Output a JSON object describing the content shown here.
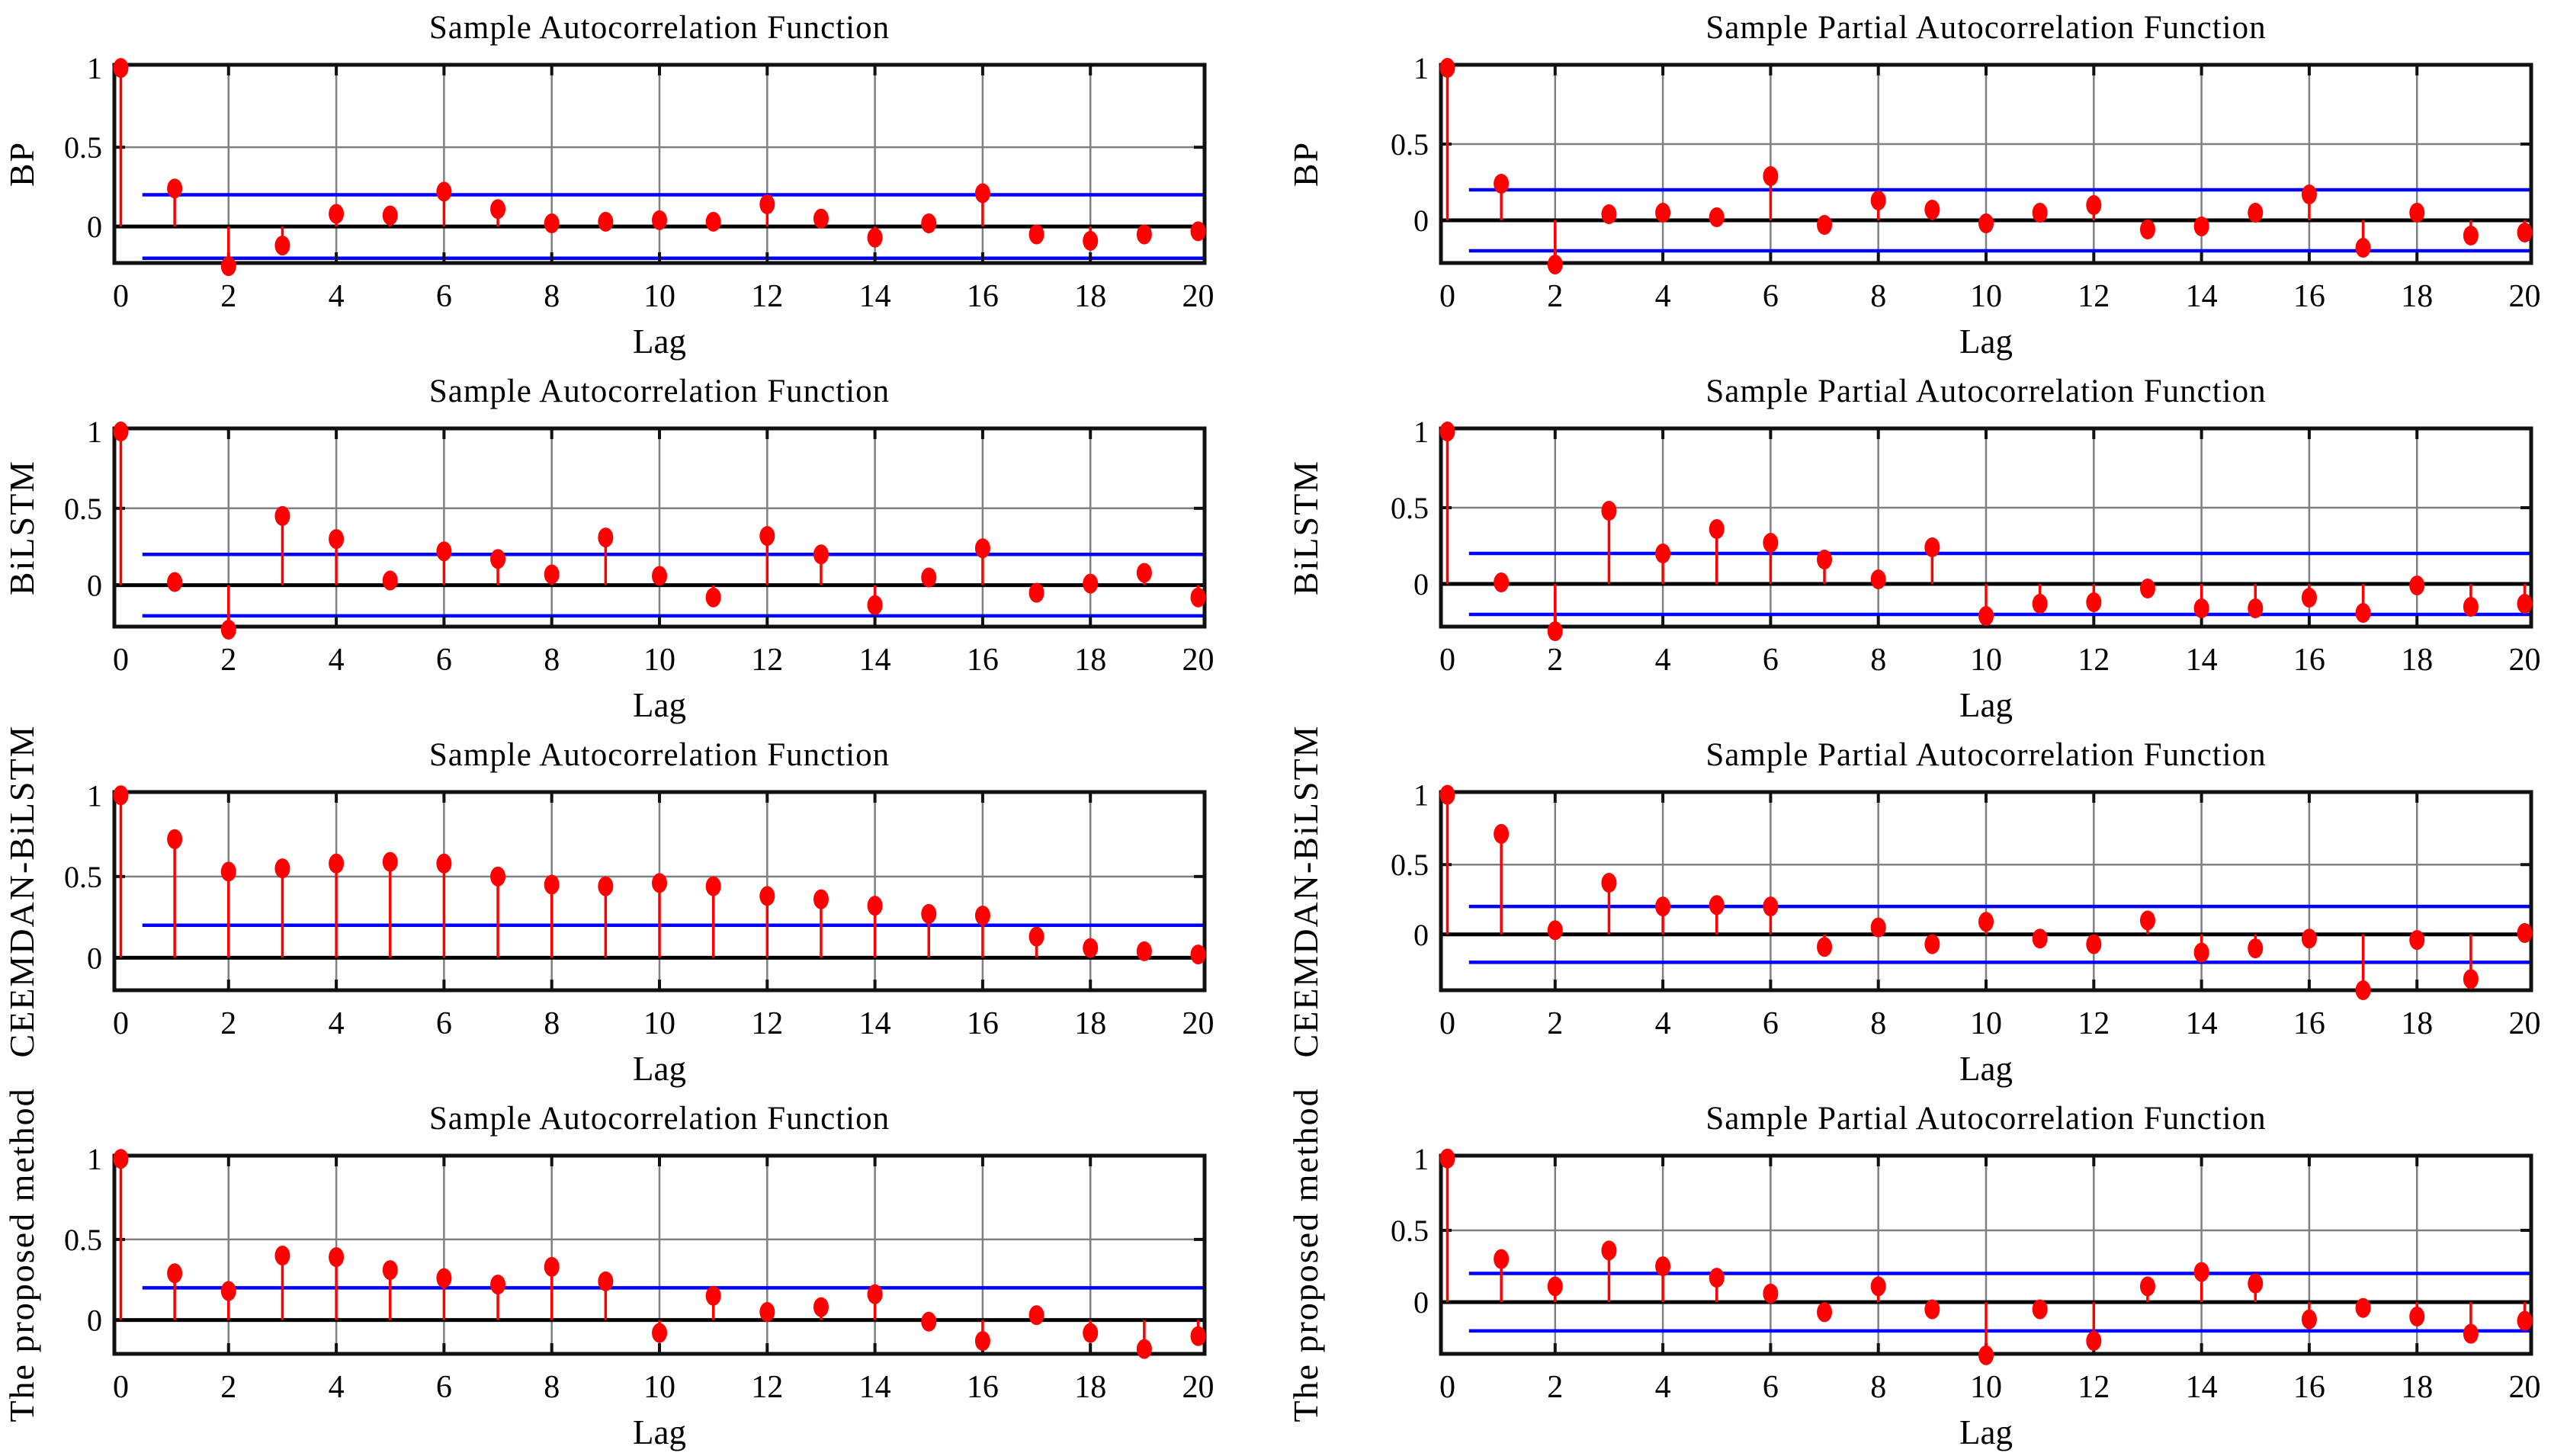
{
  "figure": {
    "description": "4x2 grid of sample autocorrelation and partial autocorrelation stem plots",
    "acf_title": "Sample Autocorrelation Function",
    "pacf_title": "Sample Partial Autocorrelation Function",
    "x_axis_label": "Lag",
    "y_tick_labels": [
      "1",
      "0.5",
      "0"
    ],
    "y_tick_values": [
      1,
      0.5,
      0
    ],
    "x_tick_labels": [
      "0",
      "2",
      "4",
      "6",
      "8",
      "10",
      "12",
      "14",
      "16",
      "18",
      "20"
    ],
    "x_tick_values": [
      0,
      2,
      4,
      6,
      8,
      10,
      12,
      14,
      16,
      18,
      20
    ]
  },
  "colors": {
    "stem": "#ff0000",
    "marker": "#ff0000",
    "confidence_bound": "#0000ff",
    "zero_line": "#000000",
    "grid": "#808080",
    "frame": "#111111",
    "text": "#000000",
    "background": "#ffffff"
  },
  "chart_data": [
    {
      "type": "stem",
      "row_label": "BP",
      "title": "Sample Autocorrelation Function",
      "xlabel": "Lag",
      "x": [
        0,
        1,
        2,
        3,
        4,
        5,
        6,
        7,
        8,
        9,
        10,
        11,
        12,
        13,
        14,
        15,
        16,
        17,
        18,
        19,
        20
      ],
      "values": [
        1,
        0.24,
        -0.25,
        -0.12,
        0.08,
        0.07,
        0.22,
        0.11,
        0.02,
        0.03,
        0.04,
        0.03,
        0.14,
        0.05,
        -0.07,
        0.02,
        0.21,
        -0.05,
        -0.09,
        -0.05,
        -0.03
      ],
      "conf_upper": 0.2,
      "conf_lower": -0.2,
      "lower_bound_visible": true,
      "ylim": [
        -0.23,
        1.02
      ],
      "xlim": [
        -0.12,
        20.12
      ],
      "grid": true
    },
    {
      "type": "stem",
      "row_label": "BP",
      "title": "Sample Partial Autocorrelation Function",
      "xlabel": "Lag",
      "x": [
        0,
        1,
        2,
        3,
        4,
        5,
        6,
        7,
        8,
        9,
        10,
        11,
        12,
        13,
        14,
        15,
        16,
        17,
        18,
        19,
        20
      ],
      "values": [
        1,
        0.24,
        -0.29,
        0.04,
        0.05,
        0.02,
        0.29,
        -0.03,
        0.13,
        0.07,
        -0.02,
        0.05,
        0.1,
        -0.06,
        -0.04,
        0.05,
        0.17,
        -0.18,
        0.05,
        -0.1,
        -0.08
      ],
      "conf_upper": 0.2,
      "conf_lower": -0.2,
      "lower_bound_visible": true,
      "ylim": [
        -0.28,
        1.02
      ],
      "xlim": [
        -0.12,
        20.12
      ],
      "grid": true
    },
    {
      "type": "stem",
      "row_label": "BiLSTM",
      "title": "Sample Autocorrelation Function",
      "xlabel": "Lag",
      "x": [
        0,
        1,
        2,
        3,
        4,
        5,
        6,
        7,
        8,
        9,
        10,
        11,
        12,
        13,
        14,
        15,
        16,
        17,
        18,
        19,
        20
      ],
      "values": [
        1,
        0.02,
        -0.29,
        0.45,
        0.3,
        0.03,
        0.22,
        0.17,
        0.07,
        0.31,
        0.06,
        -0.08,
        0.32,
        0.2,
        -0.13,
        0.05,
        0.24,
        -0.05,
        0.01,
        0.08,
        -0.08
      ],
      "conf_upper": 0.2,
      "conf_lower": -0.2,
      "lower_bound_visible": true,
      "ylim": [
        -0.27,
        1.02
      ],
      "xlim": [
        -0.12,
        20.12
      ],
      "grid": true
    },
    {
      "type": "stem",
      "row_label": "BiLSTM",
      "title": "Sample Partial Autocorrelation Function",
      "xlabel": "Lag",
      "x": [
        0,
        1,
        2,
        3,
        4,
        5,
        6,
        7,
        8,
        9,
        10,
        11,
        12,
        13,
        14,
        15,
        16,
        17,
        18,
        19,
        20
      ],
      "values": [
        1,
        0.01,
        -0.31,
        0.48,
        0.2,
        0.36,
        0.27,
        0.16,
        0.03,
        0.24,
        -0.21,
        -0.13,
        -0.12,
        -0.03,
        -0.16,
        -0.16,
        -0.09,
        -0.19,
        -0.01,
        -0.15,
        -0.13
      ],
      "conf_upper": 0.2,
      "conf_lower": -0.2,
      "lower_bound_visible": true,
      "ylim": [
        -0.28,
        1.02
      ],
      "xlim": [
        -0.12,
        20.12
      ],
      "grid": true
    },
    {
      "type": "stem",
      "row_label": "CEEMDAN-BiLSTM",
      "title": "Sample Autocorrelation Function",
      "xlabel": "Lag",
      "x": [
        0,
        1,
        2,
        3,
        4,
        5,
        6,
        7,
        8,
        9,
        10,
        11,
        12,
        13,
        14,
        15,
        16,
        17,
        18,
        19,
        20
      ],
      "values": [
        1,
        0.73,
        0.53,
        0.55,
        0.58,
        0.59,
        0.58,
        0.5,
        0.45,
        0.44,
        0.46,
        0.44,
        0.38,
        0.36,
        0.32,
        0.27,
        0.26,
        0.13,
        0.06,
        0.04,
        0.02
      ],
      "conf_upper": 0.2,
      "conf_lower": -0.2,
      "lower_bound_visible": false,
      "ylim": [
        -0.2,
        1.02
      ],
      "xlim": [
        -0.12,
        20.12
      ],
      "grid": true
    },
    {
      "type": "stem",
      "row_label": "CEEMDAN-BiLSTM",
      "title": "Sample Partial Autocorrelation Function",
      "xlabel": "Lag",
      "x": [
        0,
        1,
        2,
        3,
        4,
        5,
        6,
        7,
        8,
        9,
        10,
        11,
        12,
        13,
        14,
        15,
        16,
        17,
        18,
        19,
        20
      ],
      "values": [
        1,
        0.72,
        0.03,
        0.37,
        0.2,
        0.21,
        0.2,
        -0.09,
        0.05,
        -0.07,
        0.09,
        -0.03,
        -0.07,
        0.1,
        -0.13,
        -0.1,
        -0.03,
        -0.4,
        -0.04,
        -0.32,
        0.01
      ],
      "conf_upper": 0.2,
      "conf_lower": -0.2,
      "lower_bound_visible": true,
      "ylim": [
        -0.4,
        1.02
      ],
      "xlim": [
        -0.12,
        20.12
      ],
      "grid": true
    },
    {
      "type": "stem",
      "row_label": "The proposed method",
      "title": "Sample Autocorrelation Function",
      "xlabel": "Lag",
      "x": [
        0,
        1,
        2,
        3,
        4,
        5,
        6,
        7,
        8,
        9,
        10,
        11,
        12,
        13,
        14,
        15,
        16,
        17,
        18,
        19,
        20
      ],
      "values": [
        1,
        0.29,
        0.18,
        0.4,
        0.39,
        0.31,
        0.26,
        0.22,
        0.33,
        0.24,
        -0.08,
        0.15,
        0.05,
        0.08,
        0.16,
        -0.01,
        -0.13,
        0.03,
        -0.08,
        -0.18,
        -0.1
      ],
      "conf_upper": 0.2,
      "conf_lower": -0.2,
      "lower_bound_visible": false,
      "ylim": [
        -0.21,
        1.02
      ],
      "xlim": [
        -0.12,
        20.12
      ],
      "grid": true
    },
    {
      "type": "stem",
      "row_label": "The proposed method",
      "title": "Sample Partial Autocorrelation Function",
      "xlabel": "Lag",
      "x": [
        0,
        1,
        2,
        3,
        4,
        5,
        6,
        7,
        8,
        9,
        10,
        11,
        12,
        13,
        14,
        15,
        16,
        17,
        18,
        19,
        20
      ],
      "values": [
        1,
        0.3,
        0.11,
        0.36,
        0.25,
        0.17,
        0.06,
        -0.07,
        0.11,
        -0.05,
        -0.37,
        -0.05,
        -0.27,
        0.11,
        0.21,
        0.13,
        -0.12,
        -0.04,
        -0.1,
        -0.22,
        -0.13
      ],
      "conf_upper": 0.2,
      "conf_lower": -0.2,
      "lower_bound_visible": true,
      "ylim": [
        -0.36,
        1.02
      ],
      "xlim": [
        -0.12,
        20.12
      ],
      "grid": true
    }
  ]
}
